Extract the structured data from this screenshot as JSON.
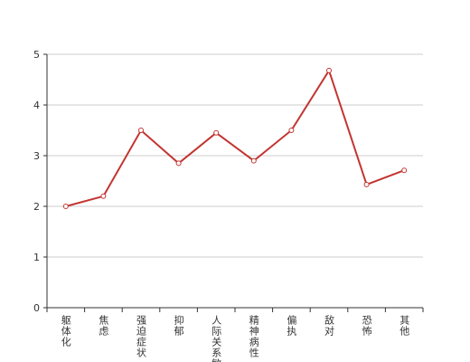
{
  "chart_data": {
    "type": "line",
    "categories": [
      "躯体化",
      "焦虑",
      "强迫症状",
      "抑郁",
      "人际关系敏感",
      "精神病性",
      "偏执",
      "敌对",
      "恐怖",
      "其他"
    ],
    "values": [
      2.0,
      2.2,
      3.5,
      2.85,
      3.45,
      2.9,
      3.5,
      4.68,
      2.43,
      2.71
    ],
    "color": "#c23531",
    "ylim": [
      0,
      5
    ],
    "yticks": [
      0,
      1,
      2,
      3,
      4,
      5
    ],
    "grid": true
  }
}
